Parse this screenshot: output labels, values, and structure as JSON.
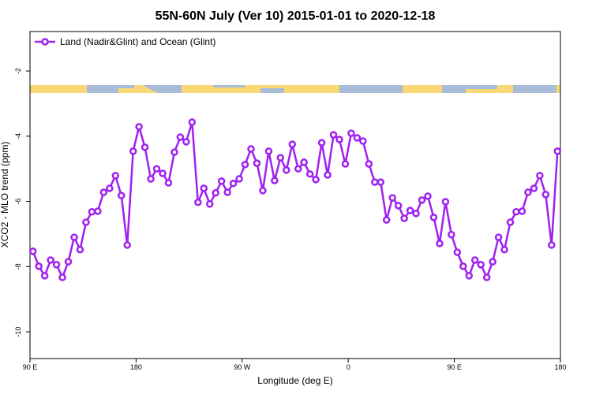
{
  "chart_data": {
    "type": "line",
    "title": "55N-60N July (Ver 10)   2015-01-01 to 2020-12-18",
    "x_label": "Longitude (deg E)",
    "y_label": "XCO2 - MLO trend (ppm)",
    "xlim": [
      90,
      540
    ],
    "ylim": [
      -10.82,
      -0.79
    ],
    "xticks": [
      {
        "value": 90,
        "label": "90 E"
      },
      180,
      {
        "value": 270,
        "label": "90 W"
      },
      {
        "value": 360,
        "label": "0"
      },
      {
        "value": 450,
        "label": "90 E"
      },
      {
        "value": 540,
        "label": "180"
      }
    ],
    "yticks": [
      -10,
      -8,
      -6,
      -4,
      -2
    ],
    "legend_position": "top-left",
    "x": [
      92.5,
      97.5,
      102.5,
      107.5,
      112.5,
      117.5,
      122.5,
      127.5,
      132.5,
      137.5,
      142.5,
      147.5,
      152.5,
      157.5,
      162.5,
      167.5,
      172.5,
      177.5,
      182.5,
      187.5,
      192.5,
      197.5,
      202.5,
      207.5,
      212.5,
      217.5,
      222.5,
      227.5,
      232.5,
      237.5,
      242.5,
      247.5,
      252.5,
      257.5,
      262.5,
      267.5,
      272.5,
      277.5,
      282.5,
      287.5,
      292.5,
      297.5,
      302.5,
      307.5,
      312.5,
      317.5,
      322.5,
      327.5,
      332.5,
      337.5,
      342.5,
      347.5,
      352.5,
      357.5,
      362.5,
      367.5,
      372.5,
      377.5,
      382.5,
      387.5,
      392.5,
      397.5,
      402.5,
      407.5,
      412.5,
      417.5,
      422.5,
      427.5,
      432.5,
      437.5,
      442.5,
      447.5,
      452.5,
      457.5,
      462.5,
      467.5,
      472.5,
      477.5,
      482.5,
      487.5,
      492.5,
      497.5,
      502.5,
      507.5,
      512.5,
      517.5,
      522.5,
      527.5,
      532.5,
      537.5
    ],
    "series": [
      {
        "name": "Land (Nadir&Glint) and Ocean (Glint)",
        "color": "#a020f0",
        "values": [
          -7.53,
          -7.99,
          -8.28,
          -7.8,
          -7.94,
          -8.33,
          -7.85,
          -7.1,
          -7.48,
          -6.64,
          -6.32,
          -6.3,
          -5.72,
          -5.6,
          -5.21,
          -5.82,
          -7.34,
          -4.46,
          -3.71,
          -4.34,
          -5.31,
          -5.0,
          -5.14,
          -5.43,
          -4.49,
          -4.03,
          -4.17,
          -3.57,
          -6.03,
          -5.6,
          -6.08,
          -5.74,
          -5.38,
          -5.72,
          -5.45,
          -5.31,
          -4.87,
          -4.39,
          -4.83,
          -5.67,
          -4.46,
          -5.36,
          -4.66,
          -5.04,
          -4.25,
          -5.0,
          -4.8,
          -5.16,
          -5.33,
          -4.2,
          -5.19,
          -3.96,
          -4.1,
          -4.85,
          -3.91,
          -4.05,
          -4.15,
          -4.85,
          -5.41,
          -5.41,
          -6.57,
          -5.89,
          -6.13,
          -6.52,
          -6.28,
          -6.37,
          -5.96,
          -5.84,
          -6.49,
          -7.29,
          -6.01,
          -7.02,
          -7.56,
          -7.99,
          -8.28,
          -7.8,
          -7.94,
          -8.33,
          -7.85,
          -7.1,
          -7.48,
          -6.64,
          -6.32,
          -6.3,
          -5.72,
          -5.6,
          -5.21,
          -5.79,
          -7.34,
          -4.46
        ]
      }
    ]
  }
}
